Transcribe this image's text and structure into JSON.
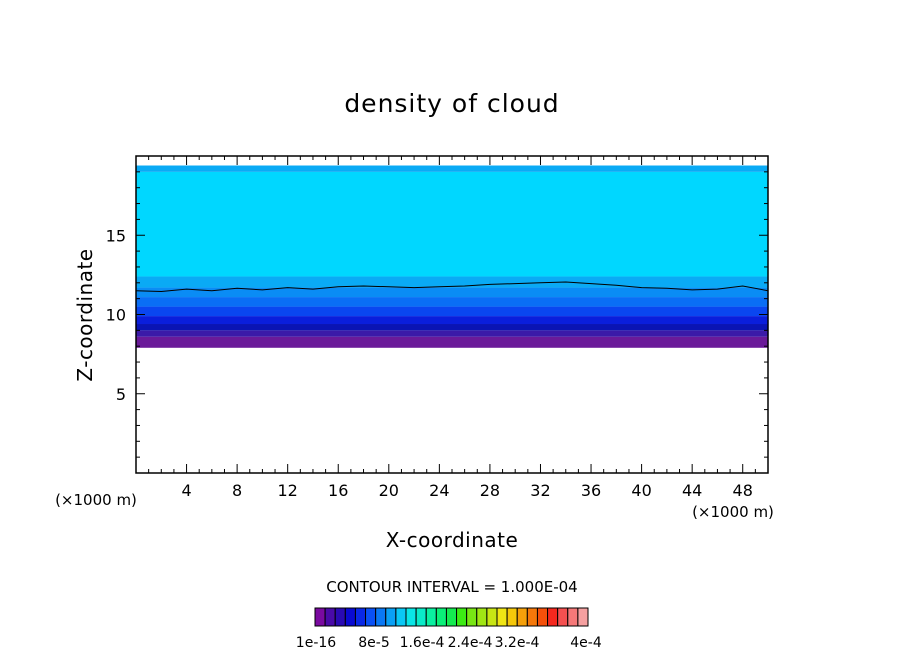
{
  "chart_data": {
    "type": "heatmap",
    "title": "density of cloud",
    "xlabel": "X-coordinate",
    "ylabel": "Z-coordinate",
    "x_unit": "(×1000 m)",
    "x_unit_right": "(×1000 m)",
    "xlim": [
      0,
      50
    ],
    "ylim": [
      0,
      20
    ],
    "x_ticks": [
      4,
      8,
      12,
      16,
      20,
      24,
      28,
      32,
      36,
      40,
      44,
      48
    ],
    "x_tick_labels": [
      "4",
      "8",
      "12",
      "16",
      "20",
      "24",
      "28",
      "32",
      "36",
      "40",
      "44",
      "48"
    ],
    "y_ticks": [
      5,
      10,
      15
    ],
    "y_tick_labels": [
      "5",
      "10",
      "15"
    ],
    "cloud_base_z": 7.9,
    "cloud_top_z": 19.4,
    "bands": [
      {
        "z0": 7.9,
        "z1": 8.6,
        "color": "#6a1a99"
      },
      {
        "z0": 8.6,
        "z1": 9.0,
        "color": "#3b1aa8"
      },
      {
        "z0": 9.0,
        "z1": 9.4,
        "color": "#0a14b4"
      },
      {
        "z0": 9.4,
        "z1": 9.9,
        "color": "#0a1edc"
      },
      {
        "z0": 9.9,
        "z1": 10.5,
        "color": "#0a46f0"
      },
      {
        "z0": 10.5,
        "z1": 11.1,
        "color": "#0a6ef5"
      },
      {
        "z0": 11.1,
        "z1": 11.7,
        "color": "#0a8cf5"
      },
      {
        "z0": 11.7,
        "z1": 12.4,
        "color": "#0aaaf5"
      },
      {
        "z0": 12.4,
        "z1": 19.0,
        "color": "#00d7ff"
      },
      {
        "z0": 19.0,
        "z1": 19.4,
        "color": "#0aaaf5"
      }
    ],
    "contour_line": {
      "x": [
        0,
        2,
        4,
        6,
        8,
        10,
        12,
        14,
        16,
        18,
        20,
        22,
        24,
        26,
        28,
        30,
        32,
        34,
        36,
        38,
        40,
        42,
        44,
        46,
        48,
        50
      ],
      "z": [
        11.5,
        11.45,
        11.6,
        11.5,
        11.65,
        11.55,
        11.7,
        11.6,
        11.75,
        11.8,
        11.75,
        11.7,
        11.75,
        11.8,
        11.9,
        11.95,
        12.0,
        12.05,
        11.95,
        11.85,
        11.7,
        11.65,
        11.55,
        11.6,
        11.8,
        11.5
      ]
    },
    "contour_interval_text": "CONTOUR INTERVAL = 1.000E-04",
    "colorbar": {
      "colors": [
        "#7a0aa0",
        "#4a0aa8",
        "#2a0ab4",
        "#0a0ad2",
        "#0a28e6",
        "#0a50f5",
        "#0a78f5",
        "#0aa0f5",
        "#0ac8f5",
        "#0ae6e6",
        "#0aebc8",
        "#0af0a0",
        "#0af078",
        "#14eb50",
        "#3ceb14",
        "#78e614",
        "#a0e614",
        "#c8e614",
        "#f0e614",
        "#f5c80a",
        "#f5a00a",
        "#f5780a",
        "#f5500a",
        "#f5281e",
        "#f55050",
        "#f57878",
        "#f5a0a0"
      ],
      "labels": [
        "1e-16",
        "8e-5",
        "1.6e-4",
        "2.4e-4",
        "3.2e-4",
        "4e-4"
      ]
    }
  }
}
